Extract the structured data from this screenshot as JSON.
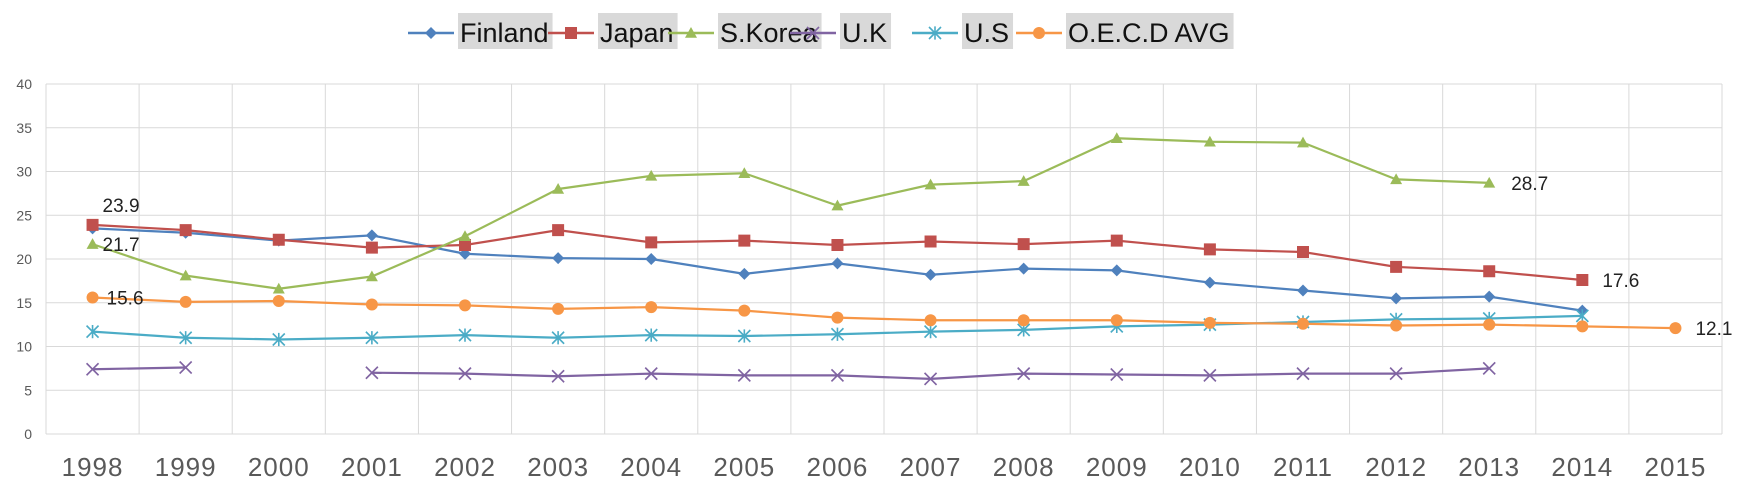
{
  "chart_data": {
    "type": "line",
    "title": "",
    "xlabel": "",
    "ylabel": "",
    "x": [
      "1998",
      "1999",
      "2000",
      "2001",
      "2002",
      "2003",
      "2004",
      "2005",
      "2006",
      "2007",
      "2008",
      "2009",
      "2010",
      "2011",
      "2012",
      "2013",
      "2014",
      "2015"
    ],
    "ylim": [
      0,
      40
    ],
    "yticks": [
      0,
      5,
      10,
      15,
      20,
      25,
      30,
      35,
      40
    ],
    "grid": true,
    "legend": "top",
    "series": [
      {
        "name": "Finland",
        "color": "#4f81bd",
        "marker": "diamond",
        "values": [
          23.5,
          23.0,
          22.1,
          22.7,
          20.6,
          20.1,
          20.0,
          18.3,
          19.5,
          18.2,
          18.9,
          18.7,
          17.3,
          16.4,
          15.5,
          15.7,
          14.1,
          null
        ]
      },
      {
        "name": "Japan",
        "color": "#c0504d",
        "marker": "square",
        "values": [
          23.9,
          23.3,
          22.2,
          21.3,
          21.6,
          23.3,
          21.9,
          22.1,
          21.6,
          22.0,
          21.7,
          22.1,
          21.1,
          20.8,
          19.1,
          18.6,
          17.6,
          null
        ]
      },
      {
        "name": "S.Korea",
        "color": "#9bbb59",
        "marker": "triangle",
        "values": [
          21.7,
          18.1,
          16.6,
          18.0,
          22.6,
          28.0,
          29.5,
          29.8,
          26.1,
          28.5,
          28.9,
          33.8,
          33.4,
          33.3,
          29.1,
          28.7,
          null,
          null
        ]
      },
      {
        "name": "U.K",
        "color": "#8064a2",
        "marker": "x",
        "values": [
          7.4,
          7.6,
          null,
          7.0,
          6.9,
          6.6,
          6.9,
          6.7,
          6.7,
          6.3,
          6.9,
          6.8,
          6.7,
          6.9,
          6.9,
          7.5,
          null,
          null
        ]
      },
      {
        "name": "U.S",
        "color": "#4bacc6",
        "marker": "star",
        "values": [
          11.7,
          11.0,
          10.8,
          11.0,
          11.3,
          11.0,
          11.3,
          11.2,
          11.4,
          11.7,
          11.9,
          12.3,
          12.5,
          12.8,
          13.1,
          13.2,
          13.5,
          null
        ]
      },
      {
        "name": "O.E.C.D AVG",
        "color": "#f79646",
        "marker": "circle",
        "values": [
          15.6,
          15.1,
          15.2,
          14.8,
          14.7,
          14.3,
          14.5,
          14.1,
          13.3,
          13.0,
          13.0,
          13.0,
          12.7,
          12.6,
          12.4,
          12.5,
          12.3,
          12.1
        ]
      }
    ],
    "annotations": [
      {
        "series": "Japan",
        "x": "1998",
        "text": "23.9"
      },
      {
        "series": "S.Korea",
        "x": "1998",
        "text": "21.7"
      },
      {
        "series": "O.E.C.D AVG",
        "x": "1998",
        "text": "15.6"
      },
      {
        "series": "S.Korea",
        "x": "2013",
        "text": "28.7"
      },
      {
        "series": "Japan",
        "x": "2014",
        "text": "17.6"
      },
      {
        "series": "O.E.C.D AVG",
        "x": "2015",
        "text": "12.1"
      }
    ]
  }
}
